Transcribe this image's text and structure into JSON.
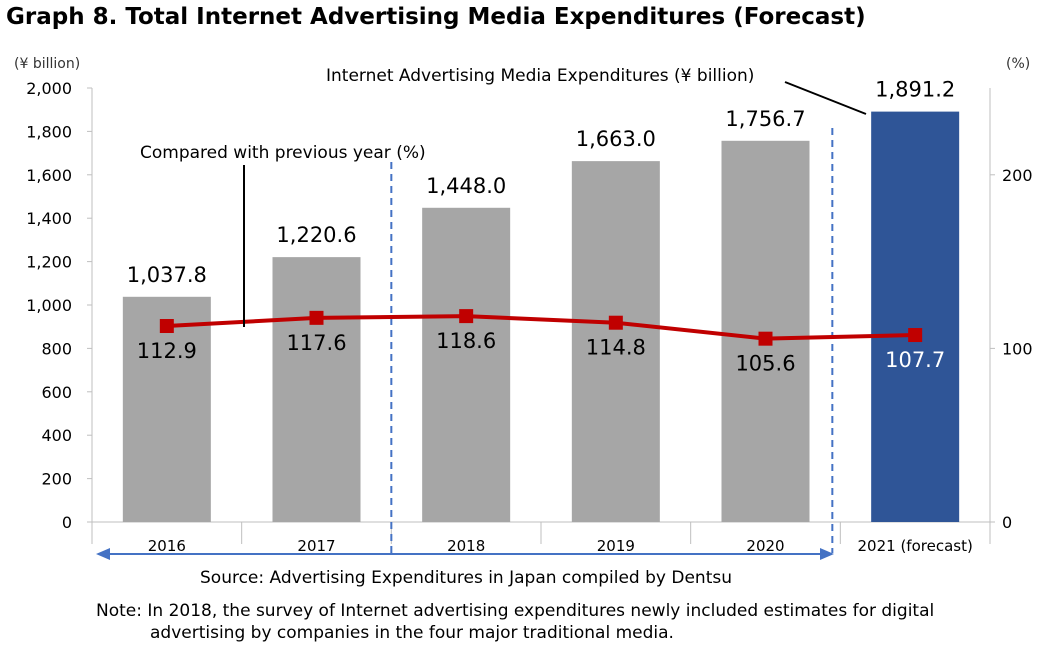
{
  "title": "Graph 8. Total Internet Advertising Media Expenditures (Forecast)",
  "chart_data": {
    "type": "bar",
    "categories": [
      "2016",
      "2017",
      "2018",
      "2019",
      "2020",
      "2021 (forecast)"
    ],
    "series": [
      {
        "name": "Internet Advertising Media Expenditures (¥ billion)",
        "axis": "left",
        "values": [
          1037.8,
          1220.6,
          1448.0,
          1663.0,
          1756.7,
          1891.2
        ],
        "labels": [
          "1,037.8",
          "1,220.6",
          "1,448.0",
          "1,663.0",
          "1,756.7",
          "1,891.2"
        ]
      },
      {
        "name": "Compared with previous year (%)",
        "type": "line",
        "axis": "right",
        "values": [
          112.9,
          117.6,
          118.6,
          114.8,
          105.6,
          107.7
        ],
        "labels": [
          "112.9",
          "117.6",
          "118.6",
          "114.8",
          "105.6",
          "107.7"
        ]
      }
    ],
    "yunit_left": "(¥ billion)",
    "yunit_right": "(%)",
    "ylim_left": [
      0,
      2000
    ],
    "ylim_right": [
      0,
      250
    ],
    "yticks_left": [
      "0",
      "200",
      "400",
      "600",
      "800",
      "1,000",
      "1,200",
      "1,400",
      "1,600",
      "1,800",
      "2,000"
    ],
    "yticks_right": [
      "0",
      "100",
      "200"
    ],
    "colors": {
      "bar": "#a6a6a6",
      "forecast_bar": "#2f5597",
      "line": "#c00000",
      "marker": "#c00000",
      "divider": "#4472c4"
    },
    "source": "Source: Advertising Expenditures in Japan compiled by Dentsu"
  },
  "note": {
    "line1": "Note: In 2018, the survey of Internet advertising expenditures newly included estimates for digital",
    "line2": "advertising by companies in the four major traditional media."
  }
}
